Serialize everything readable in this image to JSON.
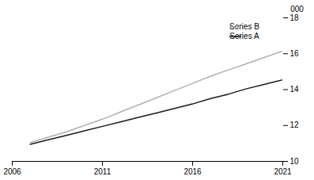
{
  "chart_data": {
    "type": "line",
    "x": [
      2007,
      2008,
      2009,
      2010,
      2011,
      2012,
      2013,
      2014,
      2015,
      2016,
      2017,
      2018,
      2019,
      2020,
      2021
    ],
    "series": [
      {
        "name": "Series B",
        "color": "#b0b0b0",
        "values": [
          11.05,
          11.35,
          11.65,
          12.0,
          12.35,
          12.75,
          13.15,
          13.55,
          13.95,
          14.35,
          14.75,
          15.1,
          15.45,
          15.8,
          16.15
        ]
      },
      {
        "name": "Series A",
        "color": "#1a1a1a",
        "values": [
          10.95,
          11.2,
          11.45,
          11.7,
          11.95,
          12.2,
          12.45,
          12.7,
          12.95,
          13.2,
          13.5,
          13.75,
          14.05,
          14.3,
          14.55
        ]
      }
    ],
    "ylabel": "000",
    "xlim": [
      2006,
      2021
    ],
    "xticks": [
      2006,
      2011,
      2016,
      2021
    ],
    "ylim": [
      10,
      18
    ],
    "yticks": [
      10,
      12,
      14,
      16,
      18
    ],
    "grid": false,
    "legend": "top-right"
  }
}
